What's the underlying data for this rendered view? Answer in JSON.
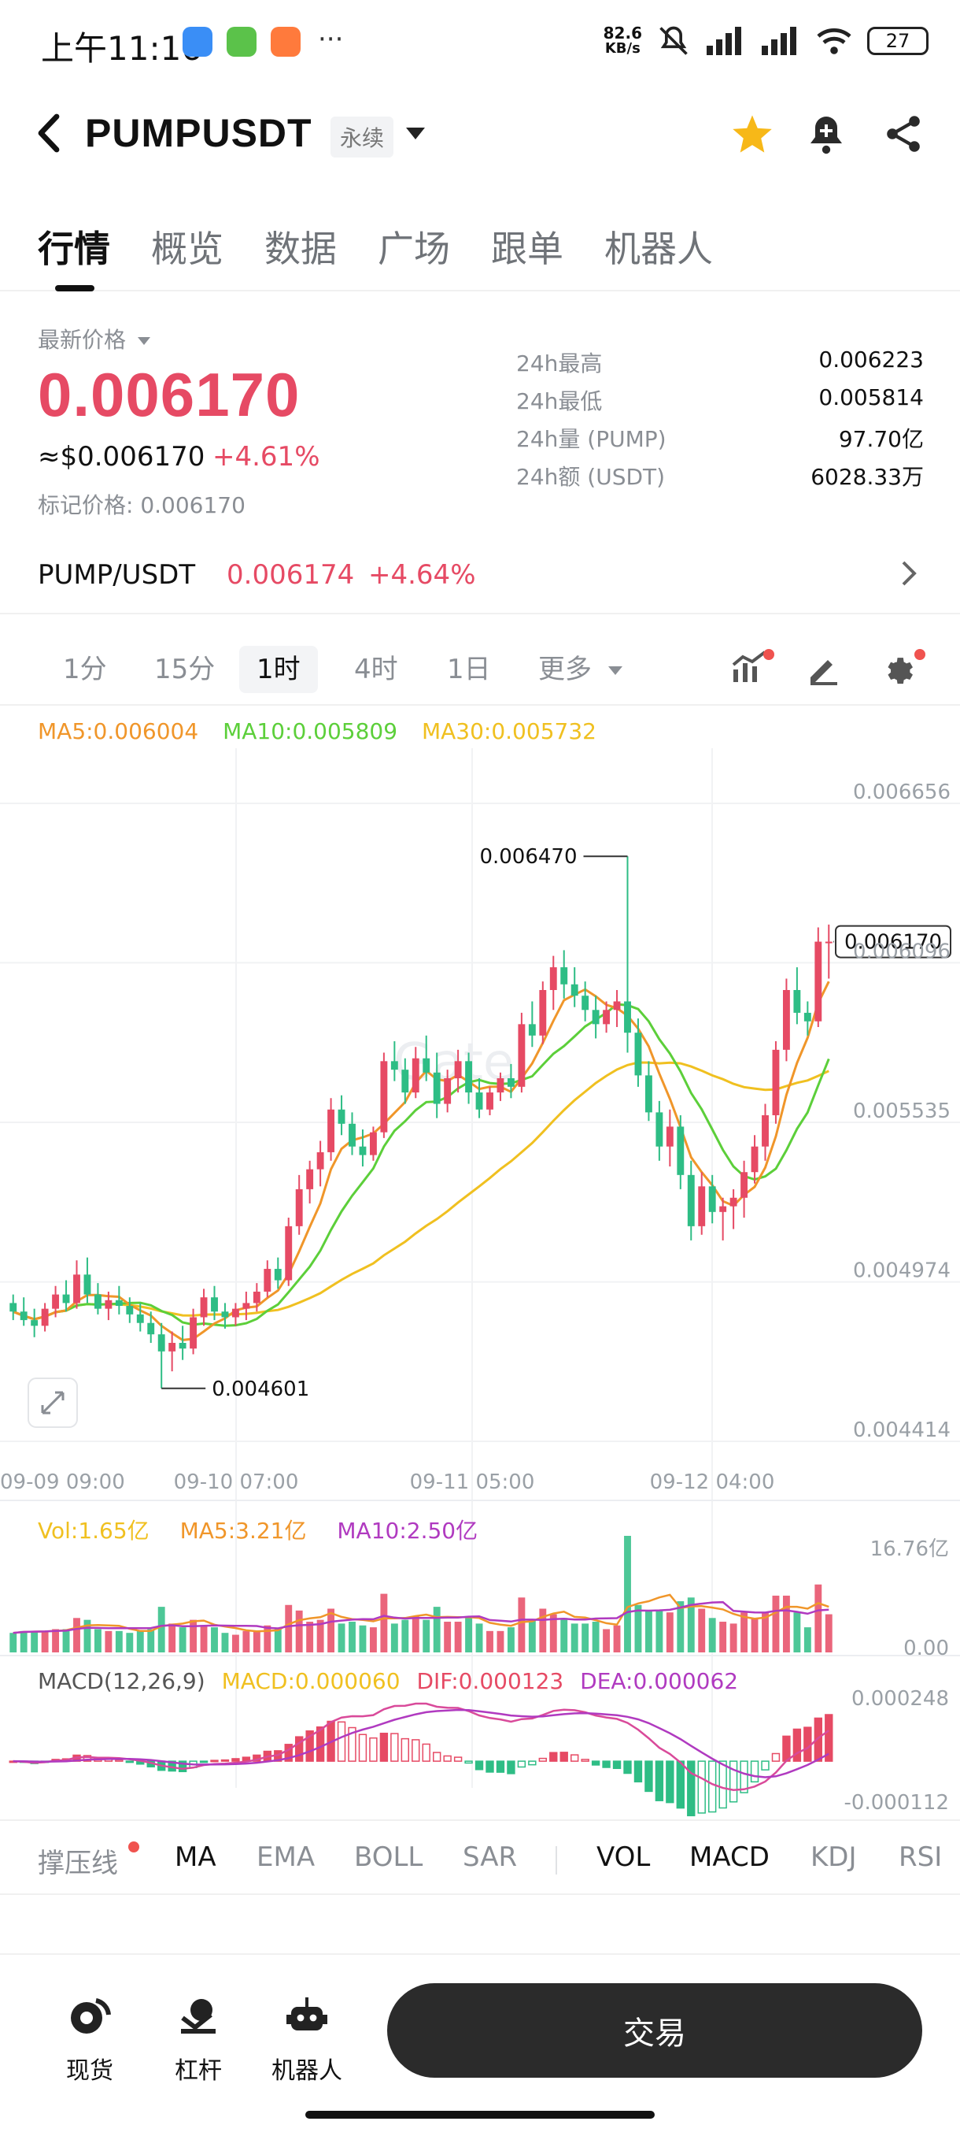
{
  "status_bar": {
    "time": "上午11:16",
    "net_speed_top": "82.6",
    "net_speed_bottom": "KB/s",
    "battery": "27",
    "more": "···"
  },
  "header": {
    "title": "PUMPUSDT",
    "contract_type": "永续"
  },
  "tabs": [
    "行情",
    "概览",
    "数据",
    "广场",
    "跟单",
    "机器人"
  ],
  "price": {
    "label": "最新价格",
    "last": "0.006170",
    "usd": "≈$0.006170",
    "change": "+4.61%",
    "mark": "标记价格: 0.006170"
  },
  "stats": [
    {
      "label": "24h最高",
      "value": "0.006223"
    },
    {
      "label": "24h最低",
      "value": "0.005814"
    },
    {
      "label": "24h量 (PUMP)",
      "value": "97.70亿"
    },
    {
      "label": "24h额 (USDT)",
      "value": "6028.33万"
    }
  ],
  "spot": {
    "name": "PUMP/USDT",
    "price": "0.006174",
    "change": "+4.64%"
  },
  "intervals": {
    "items": [
      "1分",
      "15分",
      "1时",
      "4时",
      "1日"
    ],
    "active": "1时",
    "more": "更多"
  },
  "ma_legend": {
    "ma5": "MA5:0.006004",
    "ma10": "MA10:0.005809",
    "ma30": "MA30:0.005732"
  },
  "price_axis": [
    "0.006656",
    "0.006096",
    "0.005535",
    "0.004974",
    "0.004414"
  ],
  "price_high_label": "0.006470",
  "price_low_label": "0.004601",
  "current_price_tag": "0.006170",
  "date_axis": [
    "09-09 09:00",
    "09-10 07:00",
    "09-11 05:00",
    "09-12 04:00"
  ],
  "volume": {
    "vol": "Vol:1.65亿",
    "ma5": "MA5:3.21亿",
    "ma10": "MA10:2.50亿",
    "axis_top": "16.76亿",
    "axis_bottom": "0.00"
  },
  "macd": {
    "title": "MACD(12,26,9)",
    "macd": "MACD:0.000060",
    "dif": "DIF:0.000123",
    "dea": "DEA:0.000062",
    "axis_top": "0.000248",
    "axis_bottom": "-0.000112"
  },
  "indicator_tabs": {
    "support": "撑压线",
    "main": [
      "MA",
      "EMA",
      "BOLL",
      "SAR"
    ],
    "sub": [
      "VOL",
      "MACD",
      "KDJ",
      "RSI"
    ]
  },
  "bottom_nav": {
    "spot": "现货",
    "leverage": "杠杆",
    "bot": "机器人",
    "trade": "交易"
  },
  "colors": {
    "up": "#e64a64",
    "down": "#2ebd85",
    "ma5": "#f0962a",
    "ma10": "#5ccf3a",
    "ma30": "#f0c020",
    "ma10_vol": "#b03ac0",
    "dif": "#d94a9a"
  },
  "chart_data": {
    "type": "candlestick",
    "candles_ohlc": [
      [
        0.0049,
        0.00493,
        0.00484,
        0.00487
      ],
      [
        0.00487,
        0.00492,
        0.00482,
        0.00484
      ],
      [
        0.00484,
        0.00488,
        0.00478,
        0.00482
      ],
      [
        0.00482,
        0.0049,
        0.0048,
        0.00488
      ],
      [
        0.00488,
        0.00496,
        0.00485,
        0.00493
      ],
      [
        0.00493,
        0.00498,
        0.00487,
        0.0049
      ],
      [
        0.0049,
        0.00505,
        0.00488,
        0.005
      ],
      [
        0.005,
        0.00506,
        0.0049,
        0.00493
      ],
      [
        0.00493,
        0.00497,
        0.00486,
        0.00488
      ],
      [
        0.00488,
        0.00494,
        0.00484,
        0.00491
      ],
      [
        0.00491,
        0.00496,
        0.00486,
        0.00489
      ],
      [
        0.00489,
        0.00492,
        0.00483,
        0.00486
      ],
      [
        0.00486,
        0.0049,
        0.0048,
        0.00483
      ],
      [
        0.00483,
        0.00487,
        0.00476,
        0.00479
      ],
      [
        0.00479,
        0.00483,
        0.0046,
        0.00473
      ],
      [
        0.00473,
        0.0048,
        0.00466,
        0.00476
      ],
      [
        0.00476,
        0.00482,
        0.0047,
        0.00474
      ],
      [
        0.00474,
        0.00488,
        0.00472,
        0.00485
      ],
      [
        0.00485,
        0.00495,
        0.00482,
        0.00492
      ],
      [
        0.00492,
        0.00496,
        0.00484,
        0.00487
      ],
      [
        0.00487,
        0.0049,
        0.00481,
        0.00485
      ],
      [
        0.00485,
        0.0049,
        0.00482,
        0.00488
      ],
      [
        0.00488,
        0.00494,
        0.00484,
        0.0049
      ],
      [
        0.0049,
        0.00497,
        0.00487,
        0.00494
      ],
      [
        0.00494,
        0.00505,
        0.00492,
        0.00502
      ],
      [
        0.00502,
        0.00506,
        0.00495,
        0.00498
      ],
      [
        0.00498,
        0.0052,
        0.00496,
        0.00517
      ],
      [
        0.00517,
        0.00535,
        0.00514,
        0.0053
      ],
      [
        0.0053,
        0.0054,
        0.00525,
        0.00537
      ],
      [
        0.00537,
        0.00547,
        0.00531,
        0.00543
      ],
      [
        0.00543,
        0.00562,
        0.0054,
        0.00558
      ],
      [
        0.00558,
        0.00563,
        0.00549,
        0.00553
      ],
      [
        0.00553,
        0.00557,
        0.00542,
        0.00545
      ],
      [
        0.00545,
        0.00551,
        0.00538,
        0.00542
      ],
      [
        0.00542,
        0.00552,
        0.0054,
        0.0055
      ],
      [
        0.0055,
        0.00578,
        0.00548,
        0.00575
      ],
      [
        0.00575,
        0.00582,
        0.00568,
        0.00572
      ],
      [
        0.00572,
        0.00576,
        0.0056,
        0.00564
      ],
      [
        0.00564,
        0.0058,
        0.00562,
        0.00576
      ],
      [
        0.00576,
        0.00584,
        0.00568,
        0.00571
      ],
      [
        0.00571,
        0.00578,
        0.00555,
        0.0056
      ],
      [
        0.0056,
        0.00572,
        0.00557,
        0.00569
      ],
      [
        0.00569,
        0.00579,
        0.00564,
        0.00575
      ],
      [
        0.00575,
        0.00578,
        0.0056,
        0.00564
      ],
      [
        0.00564,
        0.00569,
        0.00555,
        0.00558
      ],
      [
        0.00558,
        0.00566,
        0.00556,
        0.00564
      ],
      [
        0.00564,
        0.00571,
        0.00561,
        0.00569
      ],
      [
        0.00569,
        0.00574,
        0.00562,
        0.00566
      ],
      [
        0.00566,
        0.00592,
        0.00564,
        0.00588
      ],
      [
        0.00588,
        0.00596,
        0.0058,
        0.00584
      ],
      [
        0.00584,
        0.00603,
        0.00581,
        0.006
      ],
      [
        0.006,
        0.00612,
        0.00593,
        0.00608
      ],
      [
        0.00608,
        0.00614,
        0.00597,
        0.00602
      ],
      [
        0.00602,
        0.00608,
        0.00594,
        0.00598
      ],
      [
        0.00598,
        0.00603,
        0.00589,
        0.00593
      ],
      [
        0.00593,
        0.00598,
        0.00583,
        0.00588
      ],
      [
        0.00588,
        0.00596,
        0.00585,
        0.00593
      ],
      [
        0.00593,
        0.006,
        0.00587,
        0.00596
      ],
      [
        0.00596,
        0.00647,
        0.00578,
        0.00585
      ],
      [
        0.00585,
        0.0059,
        0.00566,
        0.0057
      ],
      [
        0.0057,
        0.00575,
        0.00554,
        0.00557
      ],
      [
        0.00557,
        0.00561,
        0.0054,
        0.00545
      ],
      [
        0.00545,
        0.00558,
        0.00538,
        0.00552
      ],
      [
        0.00552,
        0.00556,
        0.0053,
        0.00535
      ],
      [
        0.00535,
        0.0054,
        0.00512,
        0.00517
      ],
      [
        0.00517,
        0.00536,
        0.00514,
        0.00531
      ],
      [
        0.00531,
        0.00535,
        0.00518,
        0.00522
      ],
      [
        0.00522,
        0.00527,
        0.00512,
        0.00524
      ],
      [
        0.00524,
        0.0053,
        0.00516,
        0.00527
      ],
      [
        0.00527,
        0.0054,
        0.0052,
        0.00536
      ],
      [
        0.00536,
        0.00549,
        0.00532,
        0.00545
      ],
      [
        0.00545,
        0.0056,
        0.0054,
        0.00556
      ],
      [
        0.00556,
        0.00582,
        0.00553,
        0.00579
      ],
      [
        0.00579,
        0.00604,
        0.00575,
        0.006
      ],
      [
        0.006,
        0.00608,
        0.00588,
        0.00592
      ],
      [
        0.00592,
        0.00596,
        0.00584,
        0.00589
      ],
      [
        0.00589,
        0.00622,
        0.00587,
        0.00617
      ],
      [
        0.00617,
        0.00623,
        0.00604,
        0.00617
      ]
    ],
    "price_range": [
      0.004414,
      0.006656
    ],
    "volume_range": [
      0,
      16.76
    ],
    "volume_unit": "亿",
    "macd_range": [
      -0.000112,
      0.000248
    ]
  }
}
